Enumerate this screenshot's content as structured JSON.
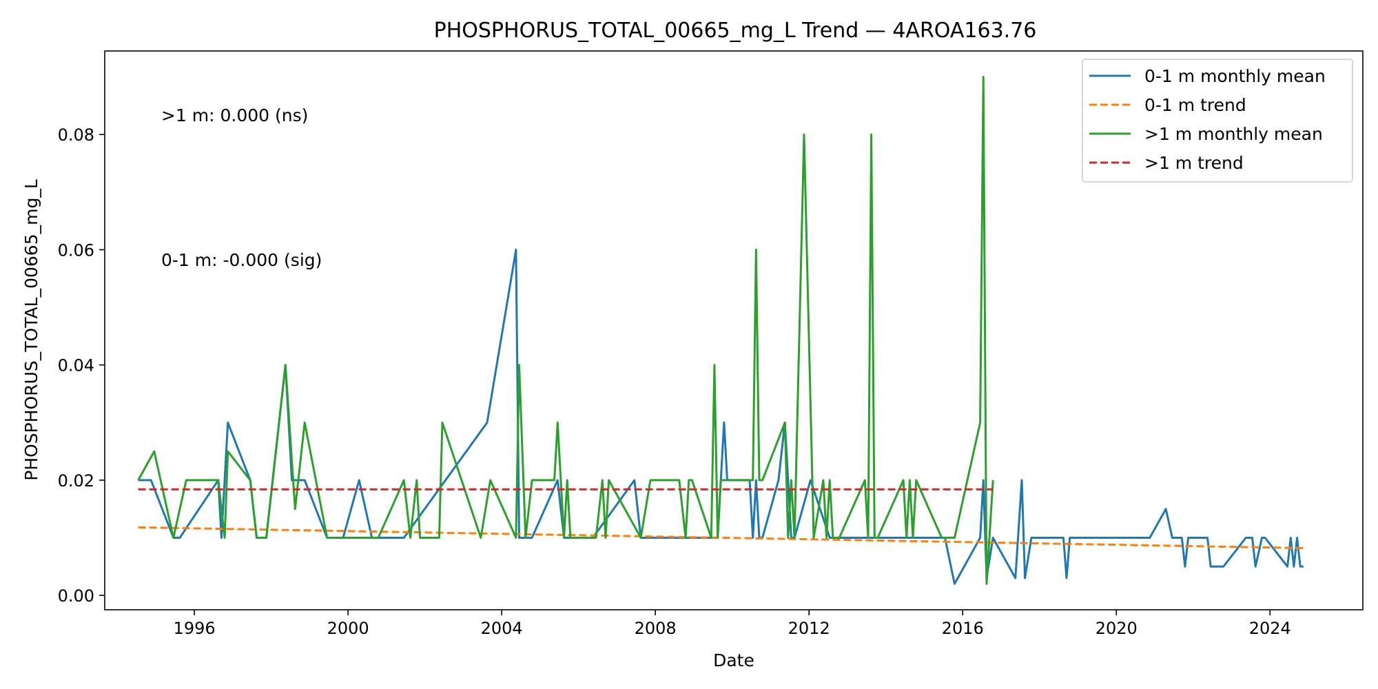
{
  "chart_data": {
    "type": "line",
    "title": "PHOSPHORUS_TOTAL_00665_mg_L Trend — 4AROA163.76",
    "xlabel": "Date",
    "ylabel": "PHOSPHORUS_TOTAL_00665_mg_L",
    "xlim": [
      "1993-09-01",
      "2026-06-01"
    ],
    "ylim": [
      -0.0025,
      0.0945
    ],
    "x_ticks": [
      "1996",
      "2000",
      "2004",
      "2008",
      "2012",
      "2016",
      "2020",
      "2024"
    ],
    "y_ticks": [
      "0.00",
      "0.02",
      "0.04",
      "0.06",
      "0.08"
    ],
    "grid": false,
    "legend": {
      "position": "top-right",
      "entries": [
        "0-1 m monthly mean",
        "0-1 m trend",
        ">1 m monthly mean",
        ">1 m trend"
      ]
    },
    "annotations": [
      ">1 m: 0.000 (ns)",
      "0-1 m: -0.000 (sig)"
    ],
    "series": [
      {
        "name": "0-1 m monthly mean",
        "color": "#1f77b4",
        "style": "solid",
        "x": [
          "1994-07",
          "1994-11",
          "1995-06",
          "1995-08",
          "1996-08",
          "1996-09",
          "1996-11",
          "1997-06",
          "1997-08",
          "1997-11",
          "1998-05",
          "1998-07",
          "1998-11",
          "1999-06",
          "1999-11",
          "2000-04",
          "2000-08",
          "2000-10",
          "2001-06",
          "2003-08",
          "2004-05",
          "2004-06",
          "2004-10",
          "2005-06",
          "2005-08",
          "2006-05",
          "2007-06",
          "2007-08",
          "2008-05",
          "2008-08",
          "2009-08",
          "2009-09",
          "2009-10",
          "2009-11",
          "2010-06",
          "2010-07",
          "2010-08",
          "2010-09",
          "2010-10",
          "2011-03",
          "2011-05",
          "2011-07",
          "2011-08",
          "2012-01",
          "2012-07",
          "2013-06",
          "2015-07",
          "2015-10",
          "2016-06",
          "2016-07",
          "2016-08",
          "2016-10",
          "2017-05",
          "2017-07",
          "2017-08",
          "2017-10",
          "2018-08",
          "2018-09",
          "2018-10",
          "2020-11",
          "2021-04",
          "2021-06",
          "2021-09",
          "2021-10",
          "2021-11",
          "2022-05",
          "2022-06",
          "2022-10",
          "2023-05",
          "2023-07",
          "2023-08",
          "2023-10",
          "2023-11",
          "2024-06",
          "2024-07",
          "2024-08",
          "2024-09",
          "2024-10",
          "2024-11"
        ],
        "values": [
          0.02,
          0.02,
          0.01,
          0.01,
          0.02,
          0.01,
          0.03,
          0.02,
          0.01,
          0.01,
          0.04,
          0.02,
          0.02,
          0.01,
          0.01,
          0.02,
          0.01,
          0.01,
          0.01,
          0.03,
          0.06,
          0.01,
          0.01,
          0.02,
          0.01,
          0.01,
          0.02,
          0.01,
          0.01,
          0.01,
          0.01,
          0.02,
          0.03,
          0.02,
          0.02,
          0.01,
          0.02,
          0.01,
          0.01,
          0.02,
          0.03,
          0.01,
          0.01,
          0.02,
          0.01,
          0.01,
          0.01,
          0.002,
          0.01,
          0.02,
          0.003,
          0.01,
          0.003,
          0.02,
          0.003,
          0.01,
          0.01,
          0.003,
          0.01,
          0.01,
          0.015,
          0.01,
          0.01,
          0.005,
          0.01,
          0.01,
          0.005,
          0.005,
          0.01,
          0.01,
          0.005,
          0.01,
          0.01,
          0.005,
          0.01,
          0.005,
          0.01,
          0.005,
          0.005
        ]
      },
      {
        "name": "0-1 m trend",
        "color": "#ff7f0e",
        "style": "dashed",
        "x": [
          "1994-07",
          "2024-11"
        ],
        "values": [
          0.0118,
          0.0082
        ]
      },
      {
        "name": ">1 m monthly mean",
        "color": "#2ca02c",
        "style": "solid",
        "x": [
          "1994-07",
          "1994-12",
          "1995-06",
          "1995-10",
          "1996-08",
          "1996-10",
          "1996-11",
          "1997-06",
          "1997-08",
          "1997-11",
          "1998-05",
          "1998-08",
          "1998-11",
          "1999-06",
          "2000-10",
          "2001-06",
          "2001-08",
          "2001-10",
          "2001-11",
          "2002-05",
          "2002-06",
          "2003-06",
          "2003-09",
          "2004-05",
          "2004-06",
          "2004-08",
          "2004-10",
          "2005-05",
          "2005-06",
          "2005-08",
          "2005-09",
          "2005-10",
          "2006-06",
          "2006-08",
          "2006-09",
          "2006-10",
          "2007-08",
          "2007-11",
          "2008-08",
          "2008-10",
          "2008-11",
          "2008-12",
          "2009-06",
          "2009-07",
          "2009-08",
          "2009-09",
          "2009-10",
          "2010-07",
          "2010-08",
          "2010-09",
          "2010-10",
          "2011-05",
          "2011-06",
          "2011-07",
          "2011-08",
          "2011-11",
          "2012-02",
          "2012-05",
          "2012-06",
          "2012-07",
          "2012-08",
          "2012-09",
          "2012-10",
          "2013-06",
          "2013-07",
          "2013-08",
          "2013-09",
          "2013-10",
          "2014-06",
          "2014-07",
          "2014-08",
          "2014-09",
          "2014-10",
          "2015-06",
          "2015-10",
          "2016-06",
          "2016-07",
          "2016-08",
          "2016-10"
        ],
        "values": [
          0.02,
          0.025,
          0.01,
          0.02,
          0.02,
          0.01,
          0.025,
          0.02,
          0.01,
          0.01,
          0.04,
          0.015,
          0.03,
          0.01,
          0.01,
          0.02,
          0.01,
          0.02,
          0.01,
          0.01,
          0.03,
          0.01,
          0.02,
          0.01,
          0.04,
          0.01,
          0.02,
          0.02,
          0.03,
          0.01,
          0.02,
          0.01,
          0.01,
          0.02,
          0.01,
          0.02,
          0.01,
          0.02,
          0.02,
          0.01,
          0.02,
          0.02,
          0.01,
          0.04,
          0.01,
          0.02,
          0.02,
          0.02,
          0.06,
          0.02,
          0.02,
          0.03,
          0.01,
          0.02,
          0.01,
          0.08,
          0.01,
          0.02,
          0.01,
          0.02,
          0.01,
          0.01,
          0.01,
          0.02,
          0.01,
          0.08,
          0.01,
          0.01,
          0.02,
          0.01,
          0.02,
          0.01,
          0.02,
          0.01,
          0.01,
          0.03,
          0.09,
          0.002,
          0.02
        ]
      },
      {
        "name": ">1 m trend",
        "color": "#d62728",
        "style": "dashed",
        "x": [
          "1994-07",
          "2016-10"
        ],
        "values": [
          0.0184,
          0.0184
        ]
      }
    ]
  }
}
